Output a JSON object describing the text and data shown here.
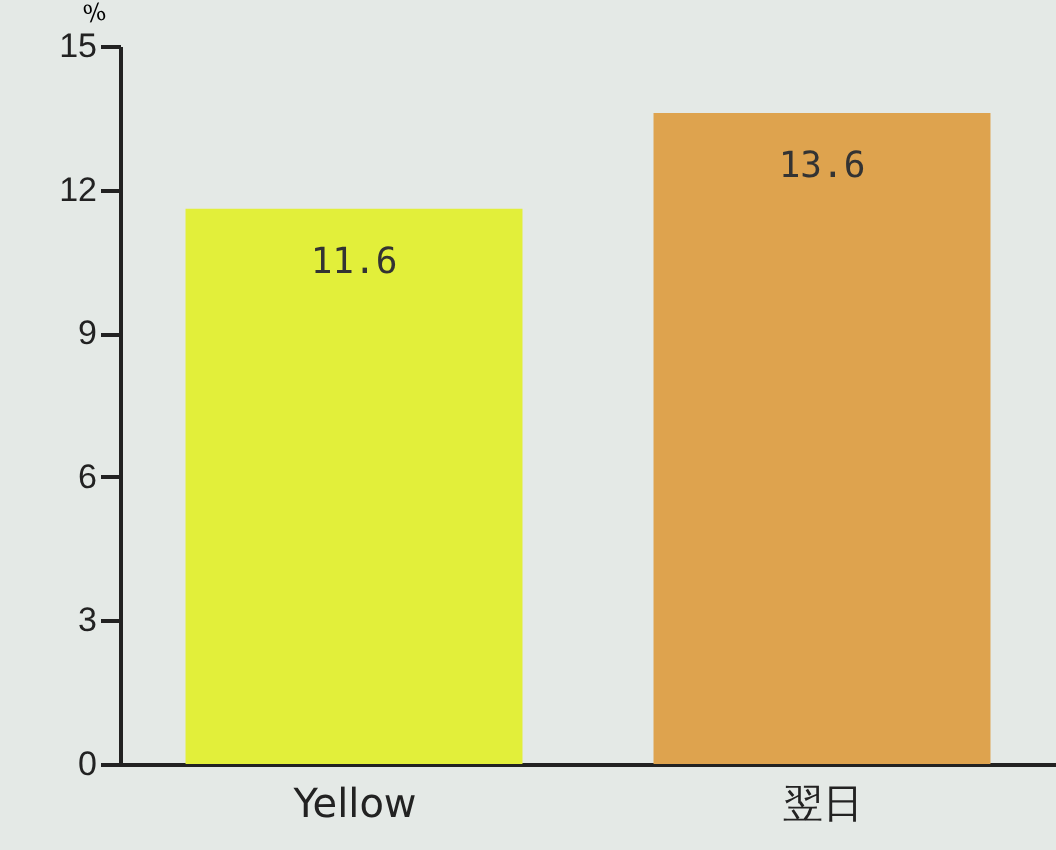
{
  "chart_data": {
    "type": "bar",
    "ylabel": "%",
    "categories": [
      "Yellow",
      "翌日"
    ],
    "colors": [
      "#e2ef3a",
      "#dea34e"
    ],
    "values": [
      11.6,
      13.6
    ],
    "ylim": [
      0,
      15
    ],
    "yticks": [
      0,
      3,
      6,
      9,
      12,
      15
    ],
    "data_labels": true
  }
}
